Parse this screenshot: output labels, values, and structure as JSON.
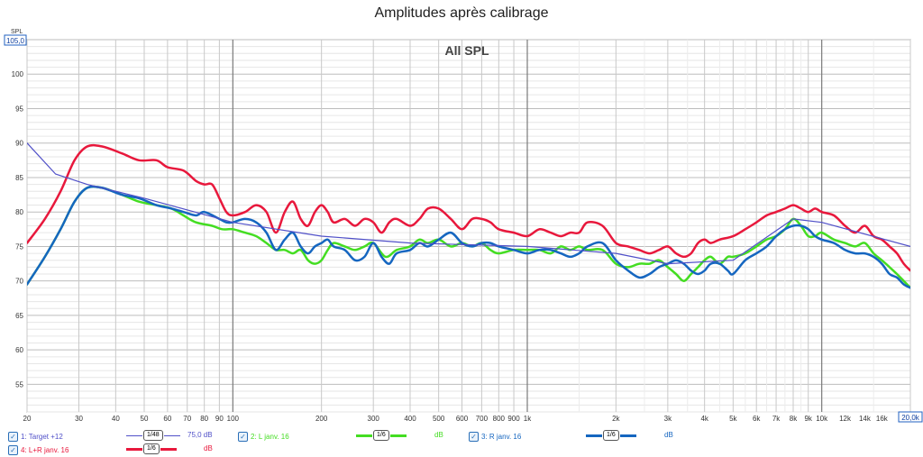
{
  "title": "Amplitudes après calibrage",
  "chart_data": {
    "type": "line",
    "inner_title": "All SPL",
    "ylabel": "SPL",
    "xscale": "log",
    "xlim": [
      20,
      20000
    ],
    "ylim": [
      51,
      105
    ],
    "y_ticks": [
      55,
      60,
      65,
      70,
      75,
      80,
      85,
      90,
      95,
      100
    ],
    "y_top_label": "105,0",
    "x_ticks": [
      {
        "v": 20,
        "label": "20"
      },
      {
        "v": 30,
        "label": "30"
      },
      {
        "v": 40,
        "label": "40"
      },
      {
        "v": 50,
        "label": "50"
      },
      {
        "v": 60,
        "label": "60"
      },
      {
        "v": 70,
        "label": "70"
      },
      {
        "v": 80,
        "label": "80"
      },
      {
        "v": 90,
        "label": "90"
      },
      {
        "v": 100,
        "label": "100"
      },
      {
        "v": 200,
        "label": "200"
      },
      {
        "v": 300,
        "label": "300"
      },
      {
        "v": 400,
        "label": "400"
      },
      {
        "v": 500,
        "label": "500"
      },
      {
        "v": 600,
        "label": "600"
      },
      {
        "v": 700,
        "label": "700"
      },
      {
        "v": 800,
        "label": "800"
      },
      {
        "v": 900,
        "label": "900"
      },
      {
        "v": 1000,
        "label": "1k"
      },
      {
        "v": 2000,
        "label": "2k"
      },
      {
        "v": 3000,
        "label": "3k"
      },
      {
        "v": 4000,
        "label": "4k"
      },
      {
        "v": 5000,
        "label": "5k"
      },
      {
        "v": 6000,
        "label": "6k"
      },
      {
        "v": 7000,
        "label": "7k"
      },
      {
        "v": 8000,
        "label": "8k"
      },
      {
        "v": 9000,
        "label": "9k"
      },
      {
        "v": 10000,
        "label": "10k"
      },
      {
        "v": 12000,
        "label": "12k"
      },
      {
        "v": 14000,
        "label": "14k"
      },
      {
        "v": 16000,
        "label": "16k"
      }
    ],
    "x_end_label": "20,0k",
    "grid": true,
    "series": [
      {
        "name": "1: Target +12",
        "color": "#5050c8",
        "width": 1.2,
        "smoothing": "1/48",
        "offset": "75,0 dB",
        "points": [
          [
            20,
            90
          ],
          [
            25,
            85.5
          ],
          [
            32,
            84
          ],
          [
            50,
            82
          ],
          [
            100,
            78.5
          ],
          [
            200,
            76.5
          ],
          [
            400,
            75.5
          ],
          [
            1000,
            75
          ],
          [
            2000,
            74
          ],
          [
            3000,
            72.5
          ],
          [
            5000,
            73
          ],
          [
            8000,
            79
          ],
          [
            10000,
            78.5
          ],
          [
            20000,
            75
          ]
        ]
      },
      {
        "name": "2: L janv. 16",
        "color": "#44dd22",
        "width": 2.5,
        "smoothing": "1/6",
        "offset": "dB",
        "points": [
          [
            20,
            69.5
          ],
          [
            23,
            73.5
          ],
          [
            26,
            77.5
          ],
          [
            29,
            81.5
          ],
          [
            32,
            83.5
          ],
          [
            36,
            83.5
          ],
          [
            42,
            82.5
          ],
          [
            48,
            81.5
          ],
          [
            55,
            81
          ],
          [
            62,
            80.5
          ],
          [
            68,
            79.5
          ],
          [
            75,
            78.5
          ],
          [
            85,
            78
          ],
          [
            92,
            77.5
          ],
          [
            100,
            77.5
          ],
          [
            110,
            77
          ],
          [
            120,
            76.5
          ],
          [
            130,
            75.5
          ],
          [
            140,
            74.5
          ],
          [
            150,
            74.5
          ],
          [
            160,
            74
          ],
          [
            170,
            74.5
          ],
          [
            180,
            73
          ],
          [
            190,
            72.5
          ],
          [
            200,
            73
          ],
          [
            210,
            74.5
          ],
          [
            220,
            75.5
          ],
          [
            240,
            75
          ],
          [
            260,
            74.5
          ],
          [
            280,
            75
          ],
          [
            300,
            75.5
          ],
          [
            330,
            73.5
          ],
          [
            360,
            74.5
          ],
          [
            400,
            75
          ],
          [
            430,
            76
          ],
          [
            460,
            75.5
          ],
          [
            500,
            76
          ],
          [
            550,
            75
          ],
          [
            600,
            75.5
          ],
          [
            650,
            75
          ],
          [
            700,
            75.5
          ],
          [
            750,
            74.5
          ],
          [
            800,
            74
          ],
          [
            900,
            74.5
          ],
          [
            1000,
            74.5
          ],
          [
            1100,
            74.5
          ],
          [
            1200,
            74
          ],
          [
            1300,
            75
          ],
          [
            1400,
            74.5
          ],
          [
            1500,
            75
          ],
          [
            1600,
            74.5
          ],
          [
            1800,
            74.5
          ],
          [
            2000,
            72.5
          ],
          [
            2200,
            72
          ],
          [
            2400,
            72.5
          ],
          [
            2600,
            72.5
          ],
          [
            2800,
            73
          ],
          [
            3000,
            72
          ],
          [
            3200,
            71
          ],
          [
            3400,
            70
          ],
          [
            3600,
            71
          ],
          [
            3800,
            72
          ],
          [
            4000,
            73
          ],
          [
            4200,
            73.5
          ],
          [
            4500,
            72.5
          ],
          [
            4800,
            73.5
          ],
          [
            5000,
            73.5
          ],
          [
            5500,
            74
          ],
          [
            6000,
            75
          ],
          [
            6500,
            76
          ],
          [
            7000,
            76.5
          ],
          [
            7500,
            77.5
          ],
          [
            8000,
            79
          ],
          [
            8500,
            78
          ],
          [
            9000,
            76.5
          ],
          [
            9500,
            76.5
          ],
          [
            10000,
            77
          ],
          [
            11000,
            76
          ],
          [
            12000,
            75.5
          ],
          [
            13000,
            75
          ],
          [
            14000,
            75.5
          ],
          [
            15000,
            74
          ],
          [
            16000,
            73
          ],
          [
            17000,
            72
          ],
          [
            18000,
            71
          ],
          [
            19000,
            70
          ],
          [
            20000,
            69
          ]
        ]
      },
      {
        "name": "3: R janv. 16",
        "color": "#1566c0",
        "width": 2.5,
        "smoothing": "1/6",
        "offset": "dB",
        "points": [
          [
            20,
            69.5
          ],
          [
            23,
            73.5
          ],
          [
            26,
            77.5
          ],
          [
            29,
            81.5
          ],
          [
            32,
            83.5
          ],
          [
            36,
            83.5
          ],
          [
            42,
            82.5
          ],
          [
            48,
            82
          ],
          [
            55,
            81
          ],
          [
            62,
            80.5
          ],
          [
            68,
            80
          ],
          [
            75,
            79.5
          ],
          [
            80,
            80
          ],
          [
            90,
            79
          ],
          [
            95,
            78.5
          ],
          [
            100,
            78.5
          ],
          [
            110,
            79
          ],
          [
            120,
            78.5
          ],
          [
            130,
            77
          ],
          [
            140,
            74.5
          ],
          [
            150,
            76
          ],
          [
            160,
            77
          ],
          [
            170,
            75
          ],
          [
            180,
            74
          ],
          [
            190,
            75
          ],
          [
            200,
            75.5
          ],
          [
            210,
            76
          ],
          [
            220,
            75
          ],
          [
            240,
            74.5
          ],
          [
            260,
            73
          ],
          [
            280,
            73.5
          ],
          [
            300,
            75.5
          ],
          [
            320,
            73.5
          ],
          [
            340,
            72.5
          ],
          [
            360,
            74
          ],
          [
            400,
            74.5
          ],
          [
            430,
            75.5
          ],
          [
            460,
            75
          ],
          [
            500,
            76
          ],
          [
            550,
            77
          ],
          [
            600,
            75.5
          ],
          [
            650,
            75
          ],
          [
            700,
            75.5
          ],
          [
            750,
            75.5
          ],
          [
            800,
            75
          ],
          [
            900,
            74.5
          ],
          [
            1000,
            74
          ],
          [
            1100,
            74.5
          ],
          [
            1200,
            74.5
          ],
          [
            1300,
            74
          ],
          [
            1400,
            73.5
          ],
          [
            1500,
            74
          ],
          [
            1600,
            75
          ],
          [
            1800,
            75.5
          ],
          [
            2000,
            73
          ],
          [
            2200,
            71.5
          ],
          [
            2400,
            70.5
          ],
          [
            2600,
            71
          ],
          [
            2800,
            72
          ],
          [
            3000,
            72.5
          ],
          [
            3200,
            73
          ],
          [
            3400,
            72.5
          ],
          [
            3600,
            71.5
          ],
          [
            3800,
            71
          ],
          [
            4000,
            71.5
          ],
          [
            4200,
            72.5
          ],
          [
            4500,
            72.5
          ],
          [
            4800,
            71.5
          ],
          [
            5000,
            71
          ],
          [
            5500,
            73
          ],
          [
            6000,
            74
          ],
          [
            6500,
            75
          ],
          [
            7000,
            76.5
          ],
          [
            7500,
            77.5
          ],
          [
            8000,
            78
          ],
          [
            8500,
            78
          ],
          [
            9000,
            77.5
          ],
          [
            9500,
            76.5
          ],
          [
            10000,
            76
          ],
          [
            11000,
            75.5
          ],
          [
            12000,
            74.5
          ],
          [
            13000,
            74
          ],
          [
            14000,
            74
          ],
          [
            15000,
            73.5
          ],
          [
            16000,
            72.5
          ],
          [
            17000,
            71
          ],
          [
            18000,
            70.5
          ],
          [
            19000,
            69.5
          ],
          [
            20000,
            69
          ]
        ]
      },
      {
        "name": "4: L+R janv. 16",
        "color": "#e8183c",
        "width": 2.5,
        "smoothing": "1/6",
        "offset": "dB",
        "points": [
          [
            20,
            75.5
          ],
          [
            23,
            79
          ],
          [
            26,
            83
          ],
          [
            29,
            87.5
          ],
          [
            32,
            89.5
          ],
          [
            36,
            89.5
          ],
          [
            42,
            88.5
          ],
          [
            48,
            87.5
          ],
          [
            55,
            87.5
          ],
          [
            60,
            86.5
          ],
          [
            68,
            86
          ],
          [
            75,
            84.5
          ],
          [
            80,
            84
          ],
          [
            85,
            84
          ],
          [
            90,
            82
          ],
          [
            95,
            80
          ],
          [
            100,
            79.5
          ],
          [
            110,
            80
          ],
          [
            120,
            81
          ],
          [
            130,
            80
          ],
          [
            140,
            77
          ],
          [
            150,
            80
          ],
          [
            160,
            81.5
          ],
          [
            170,
            79
          ],
          [
            180,
            78
          ],
          [
            190,
            80
          ],
          [
            200,
            81
          ],
          [
            210,
            80
          ],
          [
            220,
            78.5
          ],
          [
            240,
            79
          ],
          [
            260,
            78
          ],
          [
            280,
            79
          ],
          [
            300,
            78.5
          ],
          [
            320,
            77
          ],
          [
            340,
            78.5
          ],
          [
            360,
            79
          ],
          [
            400,
            78
          ],
          [
            430,
            79
          ],
          [
            460,
            80.5
          ],
          [
            500,
            80.5
          ],
          [
            550,
            79
          ],
          [
            600,
            77.5
          ],
          [
            650,
            79
          ],
          [
            700,
            79
          ],
          [
            750,
            78.5
          ],
          [
            800,
            77.5
          ],
          [
            900,
            77
          ],
          [
            1000,
            76.5
          ],
          [
            1100,
            77.5
          ],
          [
            1200,
            77
          ],
          [
            1300,
            76.5
          ],
          [
            1400,
            77
          ],
          [
            1500,
            77
          ],
          [
            1600,
            78.5
          ],
          [
            1800,
            78
          ],
          [
            2000,
            75.5
          ],
          [
            2200,
            75
          ],
          [
            2400,
            74.5
          ],
          [
            2600,
            74
          ],
          [
            2800,
            74.5
          ],
          [
            3000,
            75
          ],
          [
            3200,
            74
          ],
          [
            3400,
            73.5
          ],
          [
            3600,
            74
          ],
          [
            3800,
            75.5
          ],
          [
            4000,
            76
          ],
          [
            4200,
            75.5
          ],
          [
            4500,
            76
          ],
          [
            5000,
            76.5
          ],
          [
            5500,
            77.5
          ],
          [
            6000,
            78.5
          ],
          [
            6500,
            79.5
          ],
          [
            7000,
            80
          ],
          [
            7500,
            80.5
          ],
          [
            8000,
            81
          ],
          [
            8500,
            80.5
          ],
          [
            9000,
            80
          ],
          [
            9500,
            80.5
          ],
          [
            10000,
            80
          ],
          [
            11000,
            79.5
          ],
          [
            12000,
            78
          ],
          [
            13000,
            77
          ],
          [
            14000,
            78
          ],
          [
            15000,
            76.5
          ],
          [
            16000,
            76
          ],
          [
            17000,
            75
          ],
          [
            18000,
            74
          ],
          [
            19000,
            72.5
          ],
          [
            20000,
            71.5
          ]
        ]
      }
    ]
  }
}
